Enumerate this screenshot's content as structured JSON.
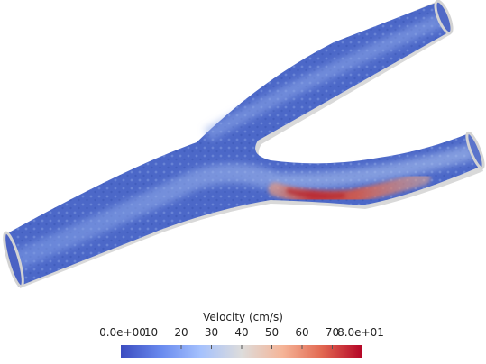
{
  "scalar_bar": {
    "title": "Velocity (cm/s)",
    "ticks": [
      {
        "label": "0.0e+00",
        "value": 0
      },
      {
        "label": "10",
        "value": 10
      },
      {
        "label": "20",
        "value": 20
      },
      {
        "label": "30",
        "value": 30
      },
      {
        "label": "40",
        "value": 40
      },
      {
        "label": "50",
        "value": 50
      },
      {
        "label": "60",
        "value": 60
      },
      {
        "label": "70",
        "value": 70
      },
      {
        "label": "8.0e+01",
        "value": 80
      }
    ],
    "range": [
      0,
      80
    ],
    "colormap": [
      "#3b4cc0",
      "#7092f3",
      "#aac7fd",
      "#dddcdb",
      "#f7b89c",
      "#e7745b",
      "#b40426"
    ]
  },
  "scene": {
    "background": "#ffffff",
    "vessel_outline_color": "#d6d6d6",
    "low_velocity_color": "#4a62c4",
    "high_velocity_color": "#b7272d"
  }
}
